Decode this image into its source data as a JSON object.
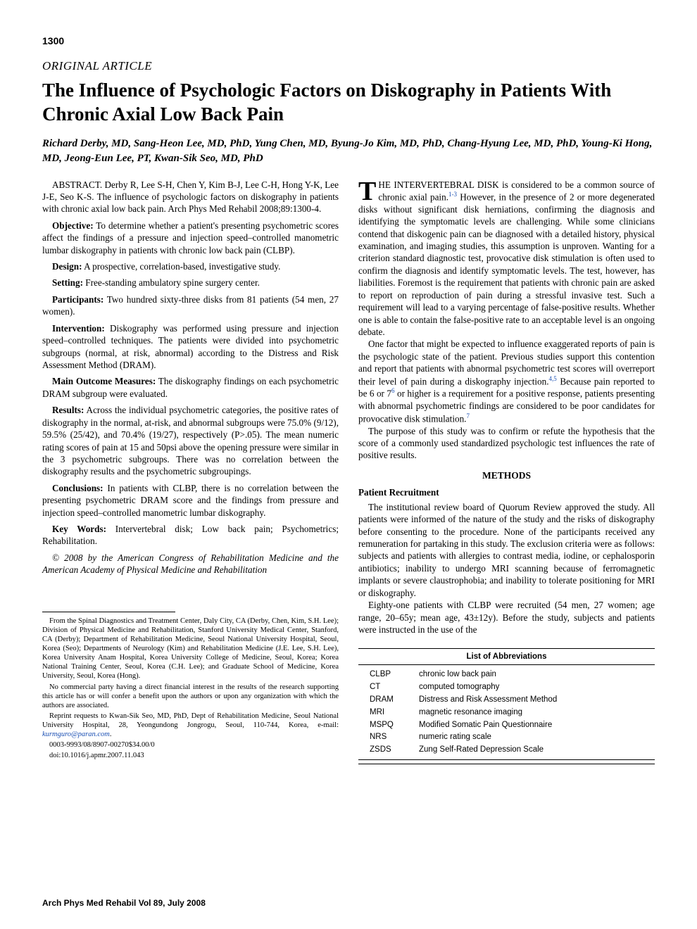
{
  "page_number": "1300",
  "article_type": "ORIGINAL ARTICLE",
  "title": "The Influence of Psychologic Factors on Diskography in Patients With Chronic Axial Low Back Pain",
  "authors": "Richard Derby, MD, Sang-Heon Lee, MD, PhD, Yung Chen, MD, Byung-Jo Kim, MD, PhD, Chang-Hyung Lee, MD, PhD, Young-Ki Hong, MD, Jeong-Eun Lee, PT, Kwan-Sik Seo, MD, PhD",
  "abstract": {
    "citation": "ABSTRACT. Derby R, Lee S-H, Chen Y, Kim B-J, Lee C-H, Hong Y-K, Lee J-E, Seo K-S. The influence of psychologic factors on diskography in patients with chronic axial low back pain. Arch Phys Med Rehabil 2008;89:1300-4.",
    "objective_label": "Objective:",
    "objective": " To determine whether a patient's presenting psychometric scores affect the findings of a pressure and injection speed–controlled manometric lumbar diskography in patients with chronic low back pain (CLBP).",
    "design_label": "Design:",
    "design": " A prospective, correlation-based, investigative study.",
    "setting_label": "Setting:",
    "setting": " Free-standing ambulatory spine surgery center.",
    "participants_label": "Participants:",
    "participants": " Two hundred sixty-three disks from 81 patients (54 men, 27 women).",
    "intervention_label": "Intervention:",
    "intervention": " Diskography was performed using pressure and injection speed–controlled techniques. The patients were divided into psychometric subgroups (normal, at risk, abnormal) according to the Distress and Risk Assessment Method (DRAM).",
    "outcomes_label": "Main Outcome Measures:",
    "outcomes": " The diskography findings on each psychometric DRAM subgroup were evaluated.",
    "results_label": "Results:",
    "results": " Across the individual psychometric categories, the positive rates of diskography in the normal, at-risk, and abnormal subgroups were 75.0% (9/12), 59.5% (25/42), and 70.4% (19/27), respectively (P>.05). The mean numeric rating scores of pain at 15 and 50psi above the opening pressure were similar in the 3 psychometric subgroups. There was no correlation between the diskography results and the psychometric subgroupings.",
    "conclusions_label": "Conclusions:",
    "conclusions": " In patients with CLBP, there is no correlation between the presenting psychometric DRAM score and the findings from pressure and injection speed–controlled manometric lumbar diskography.",
    "keywords_label": "Key Words:",
    "keywords": " Intervertebral disk; Low back pain; Psychometrics; Rehabilitation.",
    "copyright": "© 2008 by the American Congress of Rehabilitation Medicine and the American Academy of Physical Medicine and Rehabilitation"
  },
  "footnotes": {
    "affiliation": "From the Spinal Diagnostics and Treatment Center, Daly City, CA (Derby, Chen, Kim, S.H. Lee); Division of Physical Medicine and Rehabilitation, Stanford University Medical Center, Stanford, CA (Derby); Department of Rehabilitation Medicine, Seoul National University Hospital, Seoul, Korea (Seo); Departments of Neurology (Kim) and Rehabilitation Medicine (J.E. Lee, S.H. Lee), Korea University Anam Hospital, Korea University College of Medicine, Seoul, Korea; Korea National Training Center, Seoul, Korea (C.H. Lee); and Graduate School of Medicine, Korea University, Seoul, Korea (Hong).",
    "disclosure": "No commercial party having a direct financial interest in the results of the research supporting this article has or will confer a benefit upon the authors or upon any organization with which the authors are associated.",
    "reprint": "Reprint requests to Kwan-Sik Seo, MD, PhD, Dept of Rehabilitation Medicine, Seoul National University Hospital, 28, Yeongundong Jongrogu, Seoul, 110-744, Korea, e-mail: ",
    "email": "kurmguro@paran.com",
    "print_id": "0003-9993/08/8907-00270$34.00/0",
    "doi": "doi:10.1016/j.apmr.2007.11.043"
  },
  "body": {
    "p1_dropcap": "T",
    "p1_caps": "HE INTERVERTEBRAL DISK is considered to be a common source of chronic axial pain.",
    "p1_sup1": "1-3",
    "p1_rest": " However, in the presence of 2 or more degenerated disks without significant disk herniations, confirming the diagnosis and identifying the symptomatic levels are challenging. While some clinicians contend that diskogenic pain can be diagnosed with a detailed history, physical examination, and imaging studies, this assumption is unproven. Wanting for a criterion standard diagnostic test, provocative disk stimulation is often used to confirm the diagnosis and identify symptomatic levels. The test, however, has liabilities. Foremost is the requirement that patients with chronic pain are asked to report on reproduction of pain during a stressful invasive test. Such a requirement will lead to a varying percentage of false-positive results. Whether one is able to contain the false-positive rate to an acceptable level is an ongoing debate.",
    "p2a": "One factor that might be expected to influence exaggerated reports of pain is the psychologic state of the patient. Previous studies support this contention and report that patients with abnormal psychometric test scores will overreport their level of pain during a diskography injection.",
    "p2_sup1": "4,5",
    "p2b": " Because pain reported to be 6 or 7",
    "p2_sup2": "6",
    "p2c": " or higher is a requirement for a positive response, patients presenting with abnormal psychometric findings are considered to be poor candidates for provocative disk stimulation.",
    "p2_sup3": "7",
    "p3": "The purpose of this study was to confirm or refute the hypothesis that the score of a commonly used standardized psychologic test influences the rate of positive results.",
    "methods_heading": "METHODS",
    "recruit_heading": "Patient Recruitment",
    "p4": "The institutional review board of Quorum Review approved the study. All patients were informed of the nature of the study and the risks of diskography before consenting to the procedure. None of the participants received any remuneration for partaking in this study. The exclusion criteria were as follows: subjects and patients with allergies to contrast media, iodine, or cephalosporin antibiotics; inability to undergo MRI scanning because of ferromagnetic implants or severe claustrophobia; and inability to tolerate positioning for MRI or diskography.",
    "p5": "Eighty-one patients with CLBP were recruited (54 men, 27 women; age range, 20–65y; mean age, 43±12y). Before the study, subjects and patients were instructed in the use of the"
  },
  "abbreviations": {
    "title": "List of Abbreviations",
    "rows": [
      {
        "k": "CLBP",
        "v": "chronic low back pain"
      },
      {
        "k": "CT",
        "v": "computed tomography"
      },
      {
        "k": "DRAM",
        "v": "Distress and Risk Assessment Method"
      },
      {
        "k": "MRI",
        "v": "magnetic resonance imaging"
      },
      {
        "k": "MSPQ",
        "v": "Modified Somatic Pain Questionnaire"
      },
      {
        "k": "NRS",
        "v": "numeric rating scale"
      },
      {
        "k": "ZSDS",
        "v": "Zung Self-Rated Depression Scale"
      }
    ]
  },
  "journal_footer": "Arch Phys Med Rehabil Vol 89, July 2008"
}
